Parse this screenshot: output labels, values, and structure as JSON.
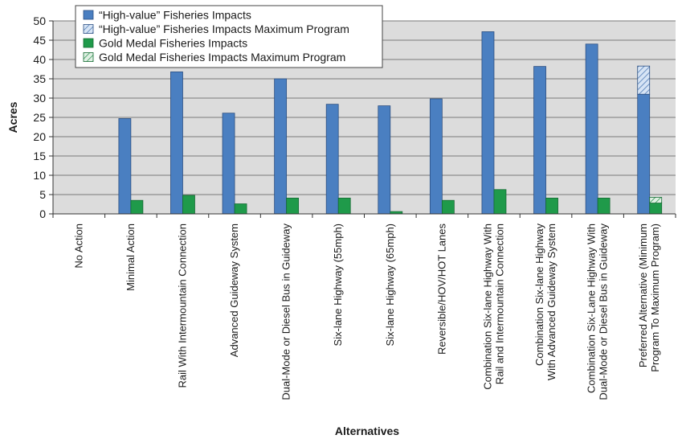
{
  "chart_data": {
    "type": "bar",
    "xlabel": "Alternatives",
    "ylabel": "Acres",
    "ylim": [
      0,
      50
    ],
    "yticks": [
      0,
      5,
      10,
      15,
      20,
      25,
      30,
      35,
      40,
      45,
      50
    ],
    "grid": true,
    "legend_position": "top-left",
    "categories": [
      [
        "No Action"
      ],
      [
        "Minimal Action"
      ],
      [
        "Rail With Intermountain Connection"
      ],
      [
        "Advanced Guideway System"
      ],
      [
        "Dual-Mode or Diesel Bus in Guideway"
      ],
      [
        "Six-lane Highway (55mph)"
      ],
      [
        "Six-lane Highway (65mph)"
      ],
      [
        "Reversible/HOV/HOT Lanes"
      ],
      [
        "Combination Six-lane Highway With",
        "Rail and Intermountain Connection"
      ],
      [
        "Combination Six-lane Highway",
        "With Advanced Guideway System"
      ],
      [
        "Combination Six-Lane Highway With",
        "Dual-Mode or Diesel Bus in Guideway"
      ],
      [
        "Preferred Alternative (Minimum",
        "Program To Maximum Program)"
      ]
    ],
    "series": [
      {
        "name": "“High-value” Fisheries Impacts",
        "color": "#4a7fc1",
        "values": [
          0,
          24.7,
          36.8,
          26.1,
          35,
          28.4,
          28,
          29.8,
          47.2,
          38.2,
          44,
          31
        ]
      },
      {
        "name": "“High-value” Fisheries Impacts Maximum Program",
        "color": "#a9c4e6",
        "pattern": "hatch",
        "values": [
          0,
          0,
          0,
          0,
          0,
          0,
          0,
          0,
          0,
          0,
          0,
          7.3
        ]
      },
      {
        "name": "Gold Medal Fisheries Impacts",
        "color": "#1f9a4a",
        "values": [
          0,
          3.5,
          4.8,
          2.6,
          4.1,
          4.1,
          0.6,
          3.5,
          6.3,
          4.1,
          4.1,
          2.8
        ]
      },
      {
        "name": "Gold Medal Fisheries Impacts Maximum Program",
        "color": "#b9e0c2",
        "pattern": "hatch",
        "values": [
          0,
          0,
          0,
          0,
          0,
          0,
          0,
          0,
          0,
          0,
          0,
          1.5
        ]
      }
    ]
  }
}
